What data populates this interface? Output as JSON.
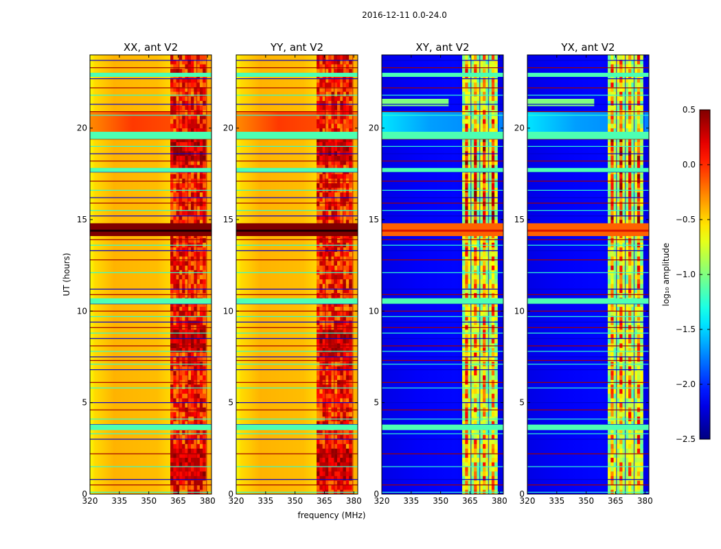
{
  "figure": {
    "suptitle": "2016-12-11 0.0-24.0"
  },
  "chart_data": {
    "type": "heatmap",
    "x_axis": {
      "label": "frequency (MHz)",
      "range": [
        320,
        382
      ],
      "ticks": [
        320,
        335,
        350,
        365,
        380
      ]
    },
    "y_axis": {
      "label": "UT (hours)",
      "range": [
        0,
        24
      ],
      "ticks": [
        0,
        5,
        10,
        15,
        20
      ]
    },
    "colorbar": {
      "label": "log₁₀ amplitude",
      "range": [
        -2.5,
        0.5
      ],
      "ticks": [
        "0.5",
        "0.0",
        "−0.5",
        "−1.0",
        "−1.5",
        "−2.0",
        "−2.5"
      ],
      "colormap": "jet"
    },
    "panels": [
      {
        "title": "XX, ant V2",
        "kind": "parallel"
      },
      {
        "title": "YY, ant V2",
        "kind": "parallel"
      },
      {
        "title": "XY, ant V2",
        "kind": "cross"
      },
      {
        "title": "YX, ant V2",
        "kind": "cross"
      }
    ],
    "rfi_band_mhz": [
      361,
      379
    ],
    "strong_rfi_ut": [
      14.1,
      14.8
    ],
    "flagged_rows_ut": [
      0.1,
      0.5,
      0.8,
      1.5,
      2.2,
      3.0,
      3.3,
      3.6,
      3.8,
      4.1,
      4.6,
      5.0,
      5.8,
      6.1,
      6.8,
      7.1,
      7.3,
      7.5,
      7.8,
      8.1,
      8.5,
      8.8,
      9.1,
      9.4,
      9.7,
      10.0,
      10.4,
      10.6,
      10.9,
      11.2,
      12.1,
      12.8,
      13.3,
      13.6,
      13.9,
      15.2,
      15.5,
      15.9,
      16.2,
      16.6,
      17.1,
      17.6,
      17.8,
      18.2,
      18.6,
      19.0,
      19.4,
      19.7,
      20.7,
      20.9,
      21.3,
      21.8,
      22.2,
      22.7,
      23.0,
      23.3,
      23.7
    ],
    "wide_flag_bands_ut": [
      [
        10.4,
        10.7
      ],
      [
        19.4,
        19.8
      ],
      [
        3.5,
        3.8
      ],
      [
        17.6,
        17.8
      ],
      [
        22.8,
        23.0
      ]
    ]
  }
}
